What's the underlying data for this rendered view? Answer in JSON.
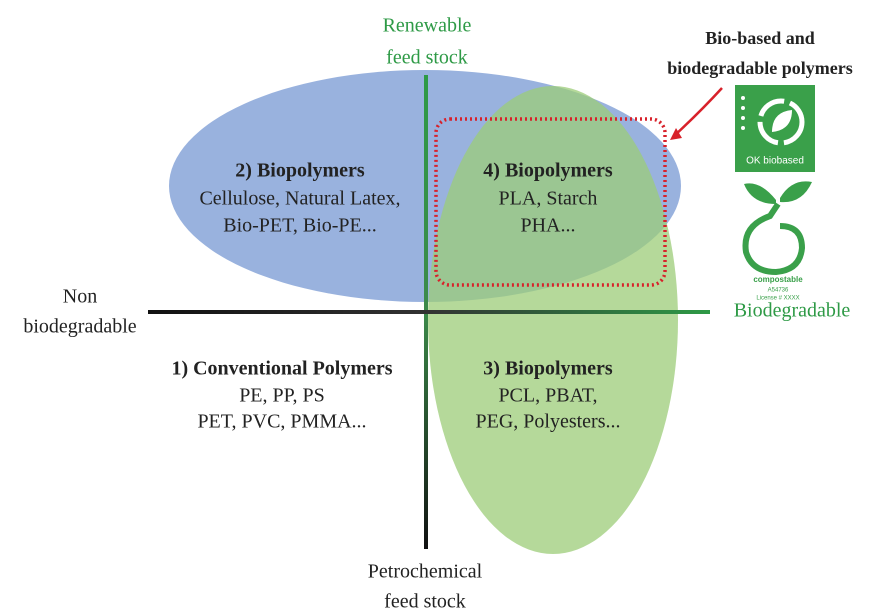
{
  "axes": {
    "top": [
      "Renewable",
      "feed stock"
    ],
    "bottom": [
      "Petrochemical",
      "feed stock"
    ],
    "left": [
      "Non",
      "biodegradable"
    ],
    "right": "Biodegradable"
  },
  "callout": [
    "Bio-based and",
    "biodegradable polymers"
  ],
  "quadrants": [
    {
      "title": "2) Biopolymers",
      "lines": [
        "Cellulose, Natural Latex,",
        "Bio-PET, Bio-PE..."
      ]
    },
    {
      "title": "4) Biopolymers",
      "lines": [
        "PLA, Starch",
        "PHA..."
      ]
    },
    {
      "title": "1) Conventional Polymers",
      "lines": [
        "PE, PP, PS",
        "PET, PVC, PMMA..."
      ]
    },
    {
      "title": "3) Biopolymers",
      "lines": [
        "PCL, PBAT,",
        "PEG, Polyesters..."
      ]
    }
  ],
  "logos": {
    "biobased": "OK biobased",
    "compostable": [
      "compostable",
      "A54736",
      "License # XXXX"
    ]
  }
}
